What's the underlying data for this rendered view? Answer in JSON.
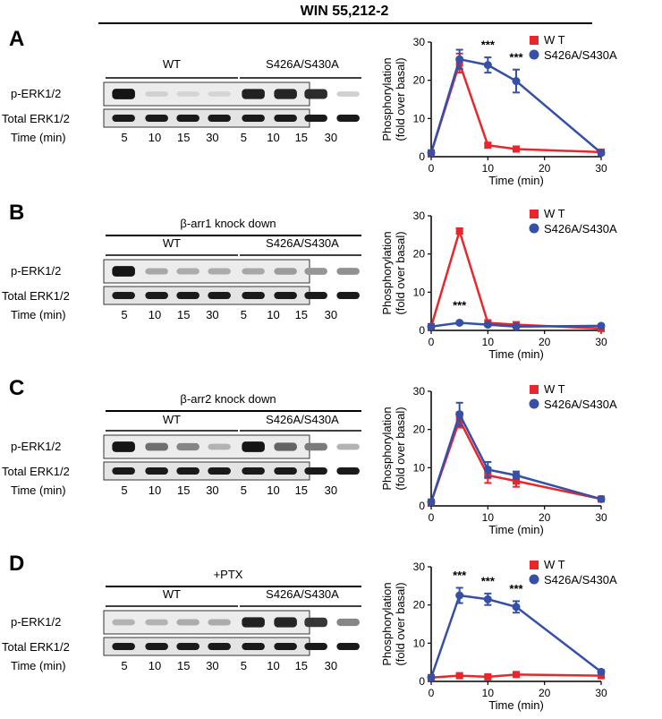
{
  "title": "WIN 55,212-2",
  "colors": {
    "wt": "#e8262b",
    "mutant": "#3550a6",
    "axis": "#000000"
  },
  "panels": [
    {
      "letter": "A",
      "condition": "",
      "groups": [
        "WT",
        "S426A/S430A"
      ],
      "blot_rows": [
        "p-ERK1/2",
        "Total ERK1/2"
      ],
      "time_label": "Time (min)",
      "lane_times": [
        "5",
        "10",
        "15",
        "30",
        "5",
        "10",
        "15",
        "30"
      ],
      "p_intensity": [
        0.95,
        0.12,
        0.1,
        0.1,
        0.9,
        0.88,
        0.85,
        0.12
      ],
      "significance": "***"
    },
    {
      "letter": "B",
      "condition": "β-arr1 knock down",
      "groups": [
        "WT",
        "S426A/S430A"
      ],
      "blot_rows": [
        "p-ERK1/2",
        "Total ERK1/2"
      ],
      "time_label": "Time (min)",
      "lane_times": [
        "5",
        "10",
        "15",
        "30",
        "5",
        "10",
        "15",
        "30"
      ],
      "p_intensity": [
        0.95,
        0.3,
        0.28,
        0.28,
        0.3,
        0.35,
        0.38,
        0.4
      ],
      "significance": "***"
    },
    {
      "letter": "C",
      "condition": "β-arr2 knock down",
      "groups": [
        "WT",
        "S426A/S430A"
      ],
      "blot_rows": [
        "p-ERK1/2",
        "Total ERK1/2"
      ],
      "time_label": "Time (min)",
      "lane_times": [
        "5",
        "10",
        "15",
        "30",
        "5",
        "10",
        "15",
        "30"
      ],
      "p_intensity": [
        0.95,
        0.55,
        0.45,
        0.25,
        0.95,
        0.6,
        0.5,
        0.25
      ],
      "significance": ""
    },
    {
      "letter": "D",
      "condition": "+PTX",
      "groups": [
        "WT",
        "S426A/S430A"
      ],
      "blot_rows": [
        "p-ERK1/2",
        "Total ERK1/2"
      ],
      "time_label": "Time (min)",
      "lane_times": [
        "5",
        "10",
        "15",
        "30",
        "5",
        "10",
        "15",
        "30"
      ],
      "p_intensity": [
        0.25,
        0.25,
        0.28,
        0.28,
        0.9,
        0.88,
        0.8,
        0.45
      ],
      "significance": "***"
    }
  ],
  "chart_data": [
    {
      "type": "line",
      "panel": "A",
      "xlabel": "Time (min)",
      "ylabel": "Phosphorylation (fold over basal)",
      "xlim": [
        0,
        30
      ],
      "ylim": [
        0,
        30
      ],
      "xticks": [
        "0",
        "10",
        "20",
        "30"
      ],
      "yticks": [
        "0",
        "10",
        "20",
        "30"
      ],
      "x": [
        0,
        5,
        10,
        15,
        30
      ],
      "legend_position": "top-right",
      "series": [
        {
          "name": "W T",
          "values": [
            1,
            24.5,
            3,
            2,
            1.2
          ],
          "errors": [
            0,
            2.5,
            0.5,
            0.4,
            0.3
          ]
        },
        {
          "name": "S426A/S430A",
          "values": [
            1,
            25.5,
            24,
            19.8,
            1
          ],
          "errors": [
            0,
            2.5,
            2,
            3,
            0.3
          ]
        }
      ],
      "annotations": [
        {
          "x": 10,
          "text": "***"
        },
        {
          "x": 15,
          "text": "***"
        }
      ]
    },
    {
      "type": "line",
      "panel": "B",
      "xlabel": "Time (min)",
      "ylabel": "Phosphorylation (fold over basal)",
      "xlim": [
        0,
        30
      ],
      "ylim": [
        0,
        30
      ],
      "xticks": [
        "0",
        "10",
        "20",
        "30"
      ],
      "yticks": [
        "0",
        "10",
        "20",
        "30"
      ],
      "x": [
        0,
        5,
        10,
        15,
        30
      ],
      "legend_position": "top-right",
      "series": [
        {
          "name": "W T",
          "values": [
            1,
            26,
            2,
            1.5,
            0.5
          ],
          "errors": [
            0,
            0.7,
            0.5,
            0.4,
            0.2
          ]
        },
        {
          "name": "S426A/S430A",
          "values": [
            1,
            2,
            1.5,
            1,
            1.2
          ],
          "errors": [
            0,
            0.3,
            0.3,
            0.3,
            0.3
          ]
        }
      ],
      "annotations": [
        {
          "x": 5,
          "text": "***",
          "y": 5.5
        }
      ]
    },
    {
      "type": "line",
      "panel": "C",
      "xlabel": "Time (min)",
      "ylabel": "Phosphorylation (fold over basal)",
      "xlim": [
        0,
        30
      ],
      "ylim": [
        0,
        30
      ],
      "xticks": [
        "0",
        "10",
        "20",
        "30"
      ],
      "yticks": [
        "0",
        "10",
        "20",
        "30"
      ],
      "x": [
        0,
        5,
        10,
        15,
        30
      ],
      "legend_position": "top-right",
      "series": [
        {
          "name": "W T",
          "values": [
            1,
            22.5,
            8,
            6.5,
            1.8
          ],
          "errors": [
            0,
            2,
            2,
            1.5,
            0.3
          ]
        },
        {
          "name": "S426A/S430A",
          "values": [
            1,
            24,
            9.5,
            8,
            1.8
          ],
          "errors": [
            0,
            3,
            2,
            1,
            0.3
          ]
        }
      ],
      "annotations": []
    },
    {
      "type": "line",
      "panel": "D",
      "xlabel": "Time (min)",
      "ylabel": "Phosphorylation (fold over basal)",
      "xlim": [
        0,
        30
      ],
      "ylim": [
        0,
        30
      ],
      "xticks": [
        "0",
        "10",
        "20",
        "30"
      ],
      "yticks": [
        "0",
        "10",
        "20",
        "30"
      ],
      "x": [
        0,
        5,
        10,
        15,
        30
      ],
      "legend_position": "top-right",
      "series": [
        {
          "name": "W T",
          "values": [
            1,
            1.5,
            1.2,
            1.8,
            1.5
          ],
          "errors": [
            0,
            0.4,
            0.4,
            0.4,
            0.3
          ]
        },
        {
          "name": "S426A/S430A",
          "values": [
            1,
            22.5,
            21.5,
            19.5,
            2.5
          ],
          "errors": [
            0,
            2,
            1.5,
            1.5,
            0.4
          ]
        }
      ],
      "annotations": [
        {
          "x": 5,
          "text": "***"
        },
        {
          "x": 10,
          "text": "***"
        },
        {
          "x": 15,
          "text": "***"
        }
      ]
    }
  ]
}
